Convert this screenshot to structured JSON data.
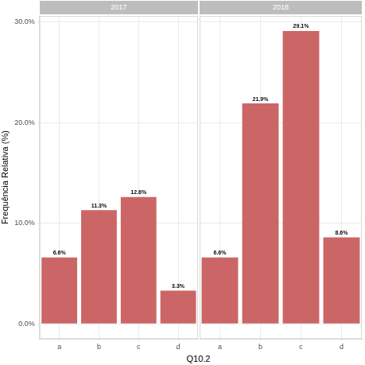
{
  "chart_data": [
    {
      "type": "bar",
      "title": "2017",
      "y_label": "Frequência Relativa (%)",
      "categories": [
        "a",
        "b",
        "c",
        "d"
      ],
      "values": [
        6.6,
        11.3,
        12.6,
        3.3
      ],
      "value_labels": [
        "6.6%",
        "11.3%",
        "12.6%",
        "3.3%"
      ],
      "color": "#cc6666",
      "data_labels": true,
      "grid": true,
      "ylim": [
        -1.5,
        30.6
      ],
      "yticks": [
        {
          "value": 0,
          "label": "0.0%"
        },
        {
          "value": 10,
          "label": "10.0%"
        },
        {
          "value": 20,
          "label": "20.0%"
        },
        {
          "value": 30,
          "label": "30.0%"
        }
      ]
    },
    {
      "type": "bar",
      "title": "2018",
      "categories": [
        "a",
        "b",
        "c",
        "d"
      ],
      "values": [
        6.6,
        21.9,
        29.1,
        8.6
      ],
      "value_labels": [
        "6.6%",
        "21.9%",
        "29.1%",
        "8.6%"
      ],
      "color": "#cc6666",
      "data_labels": true,
      "grid": true,
      "tick_labels": "x",
      "ylim": [
        -1.5,
        30.6
      ],
      "yticks": [
        {
          "value": 0,
          "label": "0.0%"
        },
        {
          "value": 10,
          "label": "10.0%"
        },
        {
          "value": 20,
          "label": "20.0%"
        },
        {
          "value": 30,
          "label": "30.0%"
        }
      ]
    }
  ],
  "x_label": "Q10.2"
}
